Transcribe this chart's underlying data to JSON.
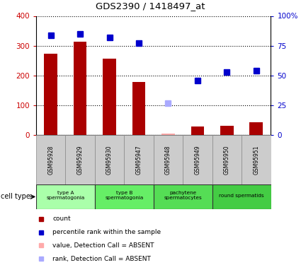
{
  "title": "GDS2390 / 1418497_at",
  "samples": [
    "GSM95928",
    "GSM95929",
    "GSM95930",
    "GSM95947",
    "GSM95948",
    "GSM95949",
    "GSM95950",
    "GSM95951"
  ],
  "bar_values": [
    272,
    313,
    257,
    178,
    5,
    28,
    32,
    43
  ],
  "bar_absent": [
    false,
    false,
    false,
    false,
    true,
    false,
    false,
    false
  ],
  "rank_values": [
    84,
    85,
    82,
    77,
    27,
    46,
    53,
    54
  ],
  "rank_absent": [
    false,
    false,
    false,
    false,
    true,
    false,
    false,
    false
  ],
  "bar_color": "#aa0000",
  "bar_absent_color": "#ffaaaa",
  "rank_color": "#0000cc",
  "rank_absent_color": "#aaaaff",
  "ylim_left": [
    0,
    400
  ],
  "ylim_right": [
    0,
    100
  ],
  "yticks_left": [
    0,
    100,
    200,
    300,
    400
  ],
  "yticks_right": [
    0,
    25,
    50,
    75,
    100
  ],
  "yticklabels_right": [
    "0",
    "25",
    "50",
    "75",
    "100%"
  ],
  "cell_groups": [
    {
      "label": "type A\nspermatogonia",
      "samples": [
        "GSM95928",
        "GSM95929"
      ],
      "color": "#aaffaa"
    },
    {
      "label": "type B\nspermatogonia",
      "samples": [
        "GSM95930",
        "GSM95947"
      ],
      "color": "#66ee66"
    },
    {
      "label": "pachytene\nspermatocytes",
      "samples": [
        "GSM95948",
        "GSM95949"
      ],
      "color": "#55dd55"
    },
    {
      "label": "round spermatids",
      "samples": [
        "GSM95950",
        "GSM95951"
      ],
      "color": "#44cc44"
    }
  ],
  "legend_items": [
    {
      "label": "count",
      "color": "#aa0000"
    },
    {
      "label": "percentile rank within the sample",
      "color": "#0000cc"
    },
    {
      "label": "value, Detection Call = ABSENT",
      "color": "#ffaaaa"
    },
    {
      "label": "rank, Detection Call = ABSENT",
      "color": "#aaaaff"
    }
  ],
  "cell_type_label": "cell type",
  "sample_box_color": "#cccccc",
  "tick_label_color_left": "#cc0000",
  "tick_label_color_right": "#0000cc"
}
